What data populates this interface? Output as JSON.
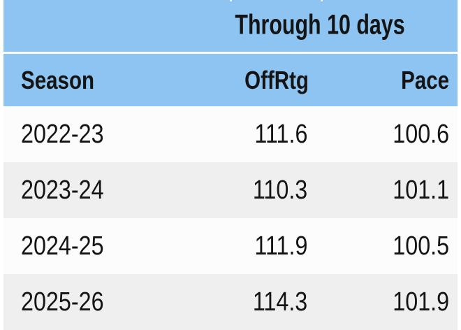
{
  "table": {
    "top_header": "Through 10 days",
    "columns": {
      "season": "Season",
      "offrtg": "OffRtg",
      "pace": "Pace"
    },
    "rows": [
      {
        "season": "2022-23",
        "offrtg": "111.6",
        "pace": "100.6"
      },
      {
        "season": "2023-24",
        "offrtg": "110.3",
        "pace": "101.1"
      },
      {
        "season": "2024-25",
        "offrtg": "111.9",
        "pace": "100.5"
      },
      {
        "season": "2025-26",
        "offrtg": "114.3",
        "pace": "101.9"
      }
    ],
    "colors": {
      "header_blue": "#8ec4f1",
      "row_white": "#fcfcfc",
      "row_gray": "#efefef",
      "separator_white": "#fafcff",
      "text": "#141414"
    }
  },
  "chart_data": {
    "type": "table",
    "title": "Through 10 days",
    "columns": [
      "Season",
      "OffRtg",
      "Pace"
    ],
    "rows": [
      [
        "2022-23",
        111.6,
        100.6
      ],
      [
        "2023-24",
        110.3,
        101.1
      ],
      [
        "2024-25",
        111.9,
        100.5
      ],
      [
        "2025-26",
        114.3,
        101.9
      ]
    ],
    "layout_hints": {
      "header_background": "#8ec4f1",
      "alternating_rows": true,
      "first_column_align": "left",
      "numeric_columns_align": "right"
    }
  }
}
